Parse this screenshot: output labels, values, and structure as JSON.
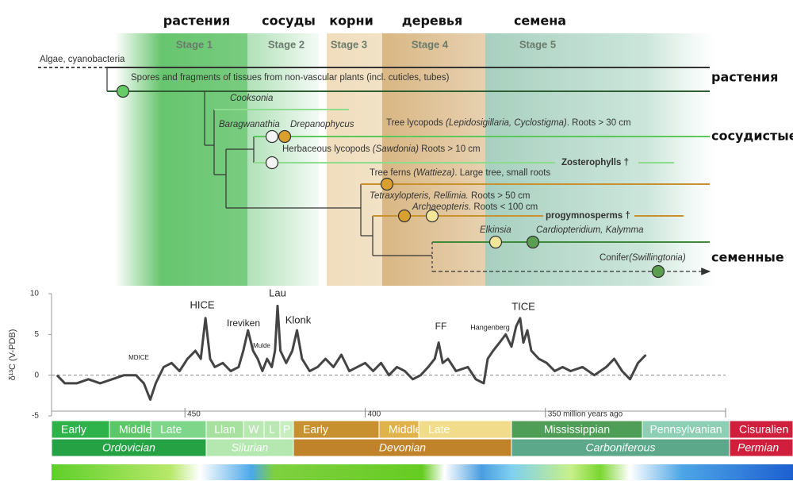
{
  "header": {
    "labels_ru": [
      "растения",
      "сосуды",
      "корни",
      "деревья",
      "семена"
    ],
    "stages": [
      "Stage 1",
      "Stage 2",
      "Stage 3",
      "Stage 4",
      "Stage 5"
    ]
  },
  "tree": {
    "algae": "Algae, cyanobacteria",
    "spores": "Spores and fragments of tissues from non-vascular plants (incl. cuticles, tubes)",
    "cooksonia": "Cooksonia",
    "baragwanathia": "Baragwanathia",
    "drepanophycus": "Drepanophycus",
    "tree_lycopods": [
      "Tree lycopods ",
      "(Lepidosigillaria, Cyclostigma)",
      ". Roots > 30 cm"
    ],
    "herbaceous": [
      "Herbaceous lycopods ",
      "(Sawdonia)",
      " Roots > 10 cm"
    ],
    "zosterophylls": "Zosterophylls †",
    "tree_ferns": [
      "Tree ferns ",
      "(Wattieza)",
      ". Large tree, small roots"
    ],
    "tetraxylopteris": [
      "Tetraxylopteris, Rellimia.",
      " Roots > 50 cm"
    ],
    "archaeopteris": [
      "Archaeopteris.",
      " Roots < 100 cm"
    ],
    "progymnosperms": "progymnosperms †",
    "elkinsia": "Elkinsia",
    "cardiopteridium": "Cardiopteridium, Kalymma",
    "conifer": [
      "Conifer",
      "(Swillingtonia)"
    ]
  },
  "side_labels": [
    "растения",
    "сосудистые",
    "семенные"
  ],
  "chart_data": {
    "type": "line",
    "color": "#444444",
    "ylabel": "δ¹³C (V-PDB)",
    "x": [
      485.5,
      483.3,
      480,
      476.8,
      473.5,
      470.2,
      466.9,
      463.6,
      461.4,
      459.6,
      458.1,
      455.9,
      453.7,
      451.5,
      449.3,
      447.1,
      445.6,
      444.3,
      443,
      441.7,
      439.5,
      437.3,
      435.1,
      433.8,
      432.5,
      431.1,
      429.8,
      428.5,
      427.2,
      425.9,
      425,
      424.3,
      423.5,
      421.9,
      420.2,
      418.9,
      417.5,
      415.4,
      413.2,
      411,
      408.8,
      406.6,
      404.4,
      402.2,
      400,
      397.8,
      395.6,
      393.4,
      391.2,
      389,
      386.8,
      384.6,
      382.5,
      380.7,
      379.6,
      378.5,
      377,
      374.8,
      371.5,
      369.3,
      367.1,
      366,
      364.5,
      362.7,
      361,
      359.4,
      358.1,
      357,
      356.1,
      355,
      353.9,
      351.8,
      349.6,
      347.4,
      345.2,
      343,
      339.7,
      336.4,
      333.1,
      330.9,
      328.7,
      326.5,
      324.3,
      322.1
    ],
    "values": [
      0,
      -1,
      -1,
      -0.5,
      -1,
      -0.5,
      0,
      0,
      -1,
      -3,
      -1,
      1,
      1.5,
      0.5,
      2,
      3,
      2,
      7,
      2,
      1,
      1.5,
      0.5,
      1,
      3,
      5.5,
      3,
      2,
      0.5,
      2,
      1,
      3,
      8.5,
      3,
      1.5,
      3,
      5.5,
      2,
      0.5,
      1,
      2,
      1,
      2.5,
      0.5,
      1,
      1.5,
      0.5,
      1.5,
      0,
      1,
      0.5,
      -0.5,
      0,
      1,
      2,
      4,
      1.5,
      2,
      0.5,
      1,
      -0.5,
      -1,
      2,
      3,
      4,
      5,
      3.5,
      6,
      7,
      4,
      5.5,
      3,
      2,
      1.5,
      0.5,
      1,
      0.5,
      1,
      0,
      1,
      2,
      0.5,
      -0.5,
      1.5,
      2.5
    ],
    "xlim": [
      487,
      300
    ],
    "ylim": [
      -5,
      10
    ],
    "yticks": [
      10,
      5,
      0,
      -5
    ],
    "xticks": [
      450,
      400,
      {
        "value": 350,
        "label": "350 million years ago"
      }
    ],
    "annotations": [
      "HICE",
      "Ireviken",
      "Lau",
      "Klonk",
      "Mulde",
      "MDICE",
      "FF",
      "Hangenberg",
      "TICE"
    ]
  },
  "timescale": {
    "epochs": [
      "Early",
      "Middle",
      "Late",
      "Llan",
      "W",
      "L",
      "P",
      "Early",
      "Middle",
      "Late",
      "Mississippian",
      "Pennsylvanian",
      "Cisuralien"
    ],
    "periods": [
      "Ordovician",
      "Silurian",
      "Devonian",
      "Carboniferous",
      "Permian"
    ]
  }
}
